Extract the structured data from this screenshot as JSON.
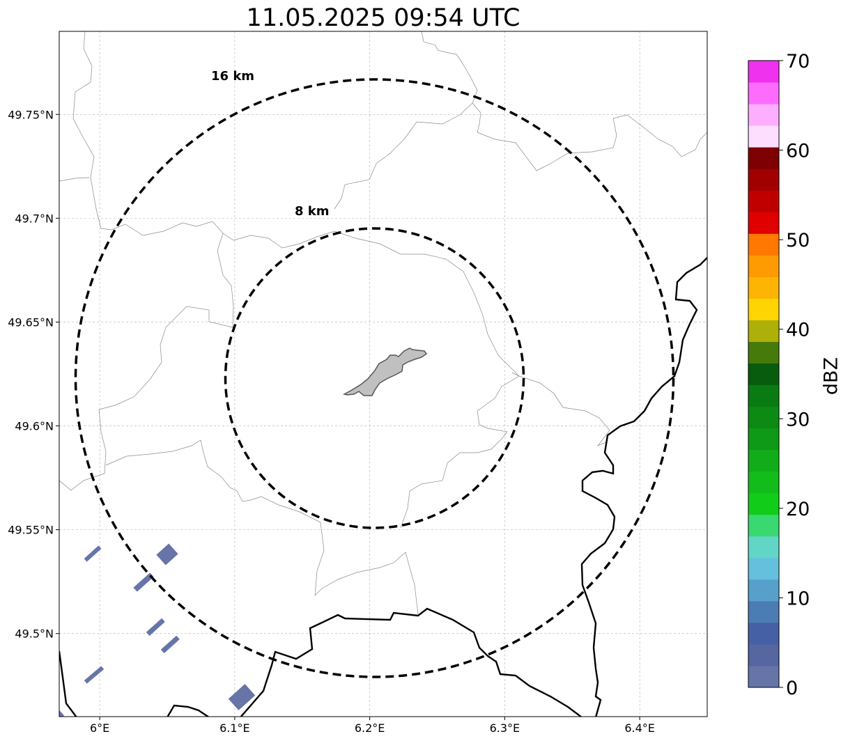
{
  "title": "11.05.2025 09:54 UTC",
  "map": {
    "lon_range": [
      5.97,
      6.45
    ],
    "lat_range": [
      49.46,
      49.79
    ],
    "lon_ticks": [
      {
        "value": 6.0,
        "label": "6°E"
      },
      {
        "value": 6.1,
        "label": "6.1°E"
      },
      {
        "value": 6.2,
        "label": "6.2°E"
      },
      {
        "value": 6.3,
        "label": "6.3°E"
      },
      {
        "value": 6.4,
        "label": "6.4°E"
      }
    ],
    "lat_ticks": [
      {
        "value": 49.5,
        "label": "49.5°N"
      },
      {
        "value": 49.55,
        "label": "49.55°N"
      },
      {
        "value": 49.6,
        "label": "49.6°N"
      },
      {
        "value": 49.65,
        "label": "49.65°N"
      },
      {
        "value": 49.7,
        "label": "49.7°N"
      },
      {
        "value": 49.75,
        "label": "49.75°N"
      }
    ],
    "gridlines": true,
    "range_rings": [
      {
        "label": "8 km",
        "radius_km": 8
      },
      {
        "label": "16 km",
        "radius_km": 16
      }
    ],
    "echo_color": "#6674a8"
  },
  "colorbar": {
    "label": "dBZ",
    "ticks": [
      "0",
      "10",
      "20",
      "30",
      "40",
      "50",
      "60",
      "70"
    ],
    "colors": [
      "#6674a8",
      "#5566a0",
      "#4560a4",
      "#4b7cb4",
      "#58a0cc",
      "#64c0dc",
      "#62d6c6",
      "#3ad870",
      "#12cc1a",
      "#12bc1a",
      "#12ac1a",
      "#0e9a16",
      "#0c8a14",
      "#0a7a12",
      "#085c0e",
      "#467a0a",
      "#aeb00a",
      "#fed402",
      "#feb402",
      "#fe9a02",
      "#fe7802",
      "#e00000",
      "#c00000",
      "#a00000",
      "#7e0000",
      "#fedefe",
      "#feaefe",
      "#fe6cfe",
      "#ee32ee"
    ]
  }
}
